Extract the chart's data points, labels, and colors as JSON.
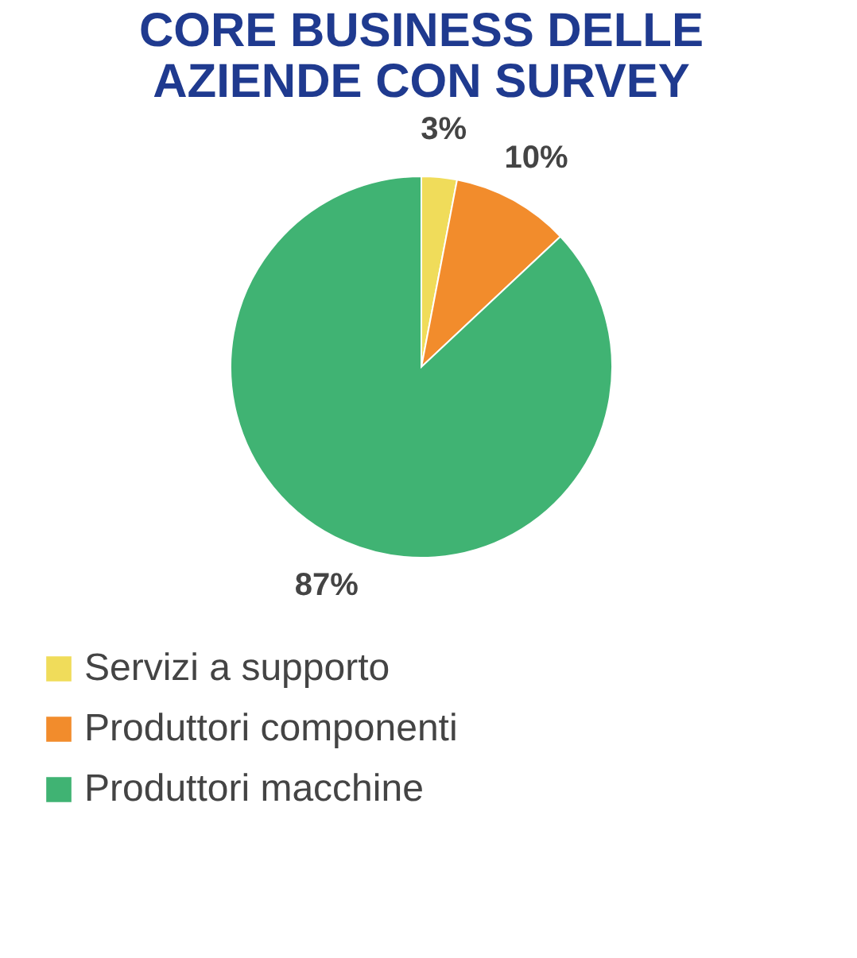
{
  "chart_data": {
    "type": "pie",
    "title": [
      "CORE BUSINESS DELLE",
      "AZIENDE CON SURVEY"
    ],
    "categories": [
      "Servizi a supporto",
      "Produttori componenti",
      "Produttori macchine"
    ],
    "values": [
      3,
      10,
      87
    ],
    "colors": [
      "#f0dc5a",
      "#f28c2c",
      "#40b373"
    ],
    "value_labels": [
      "3%",
      "10%",
      "87%"
    ],
    "legend": "bottom"
  }
}
